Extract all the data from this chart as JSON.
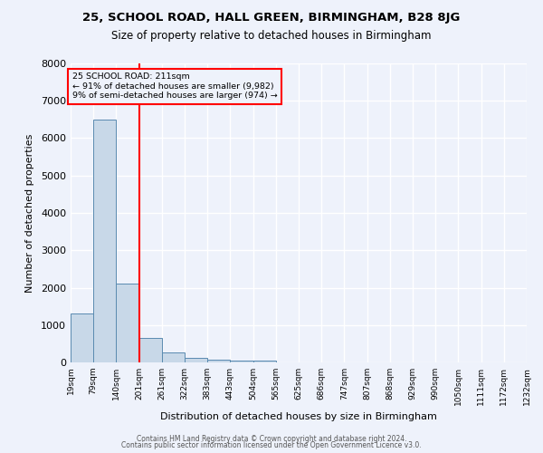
{
  "title1": "25, SCHOOL ROAD, HALL GREEN, BIRMINGHAM, B28 8JG",
  "title2": "Size of property relative to detached houses in Birmingham",
  "xlabel": "Distribution of detached houses by size in Birmingham",
  "ylabel": "Number of detached properties",
  "annotation_line1": "25 SCHOOL ROAD: 211sqm",
  "annotation_line2": "← 91% of detached houses are smaller (9,982)",
  "annotation_line3": "9% of semi-detached houses are larger (974) →",
  "bin_labels": [
    "19sqm",
    "79sqm",
    "140sqm",
    "201sqm",
    "261sqm",
    "322sqm",
    "383sqm",
    "443sqm",
    "504sqm",
    "565sqm",
    "625sqm",
    "686sqm",
    "747sqm",
    "807sqm",
    "868sqm",
    "929sqm",
    "990sqm",
    "1050sqm",
    "1111sqm",
    "1172sqm",
    "1232sqm"
  ],
  "bar_values": [
    1300,
    6500,
    2100,
    650,
    270,
    110,
    70,
    60,
    60,
    0,
    0,
    0,
    0,
    0,
    0,
    0,
    0,
    0,
    0,
    0
  ],
  "bar_color": "#c8d8e8",
  "bar_edge_color": "#5a8ab0",
  "red_line_x": 3.0,
  "ylim": [
    0,
    8000
  ],
  "yticks": [
    0,
    1000,
    2000,
    3000,
    4000,
    5000,
    6000,
    7000,
    8000
  ],
  "background_color": "#eef2fb",
  "grid_color": "#ffffff",
  "footer1": "Contains HM Land Registry data © Crown copyright and database right 2024.",
  "footer2": "Contains public sector information licensed under the Open Government Licence v3.0."
}
